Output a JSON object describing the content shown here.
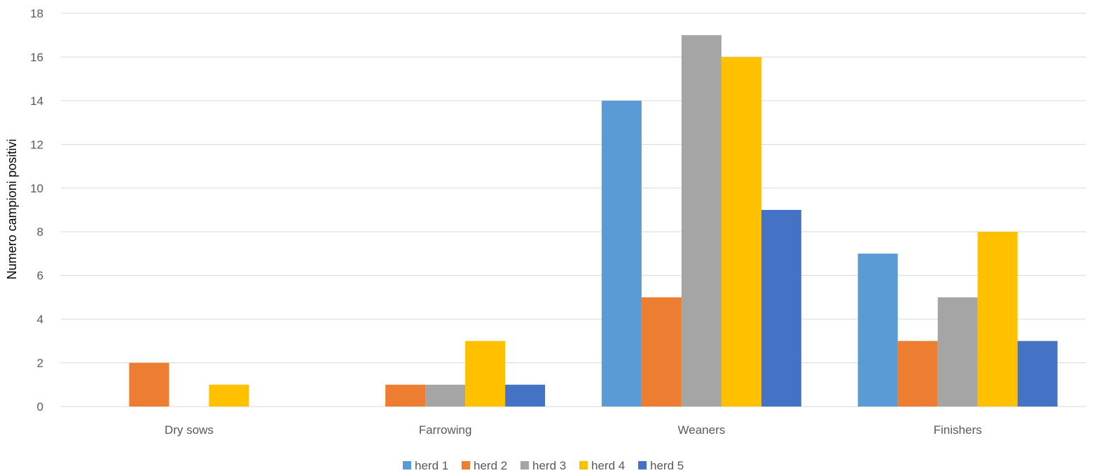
{
  "chart_data": {
    "type": "bar",
    "title": "",
    "xlabel": "",
    "ylabel": "Numero campioni positivi",
    "ylim": [
      0,
      18
    ],
    "yticks": [
      0,
      2,
      4,
      6,
      8,
      10,
      12,
      14,
      16,
      18
    ],
    "grid": true,
    "legend_position": "bottom",
    "categories": [
      "Dry sows",
      "Farrowing",
      "Weaners",
      "Finishers"
    ],
    "series": [
      {
        "name": "herd 1",
        "color": "#5B9BD5",
        "values": [
          0,
          0,
          14,
          7
        ]
      },
      {
        "name": "herd 2",
        "color": "#ED7D31",
        "values": [
          2,
          1,
          5,
          3
        ]
      },
      {
        "name": "herd 3",
        "color": "#A5A5A5",
        "values": [
          0,
          1,
          17,
          5
        ]
      },
      {
        "name": "herd 4",
        "color": "#FFC000",
        "values": [
          1,
          3,
          16,
          8
        ]
      },
      {
        "name": "herd 5",
        "color": "#4472C4",
        "values": [
          0,
          1,
          9,
          3
        ]
      }
    ]
  }
}
